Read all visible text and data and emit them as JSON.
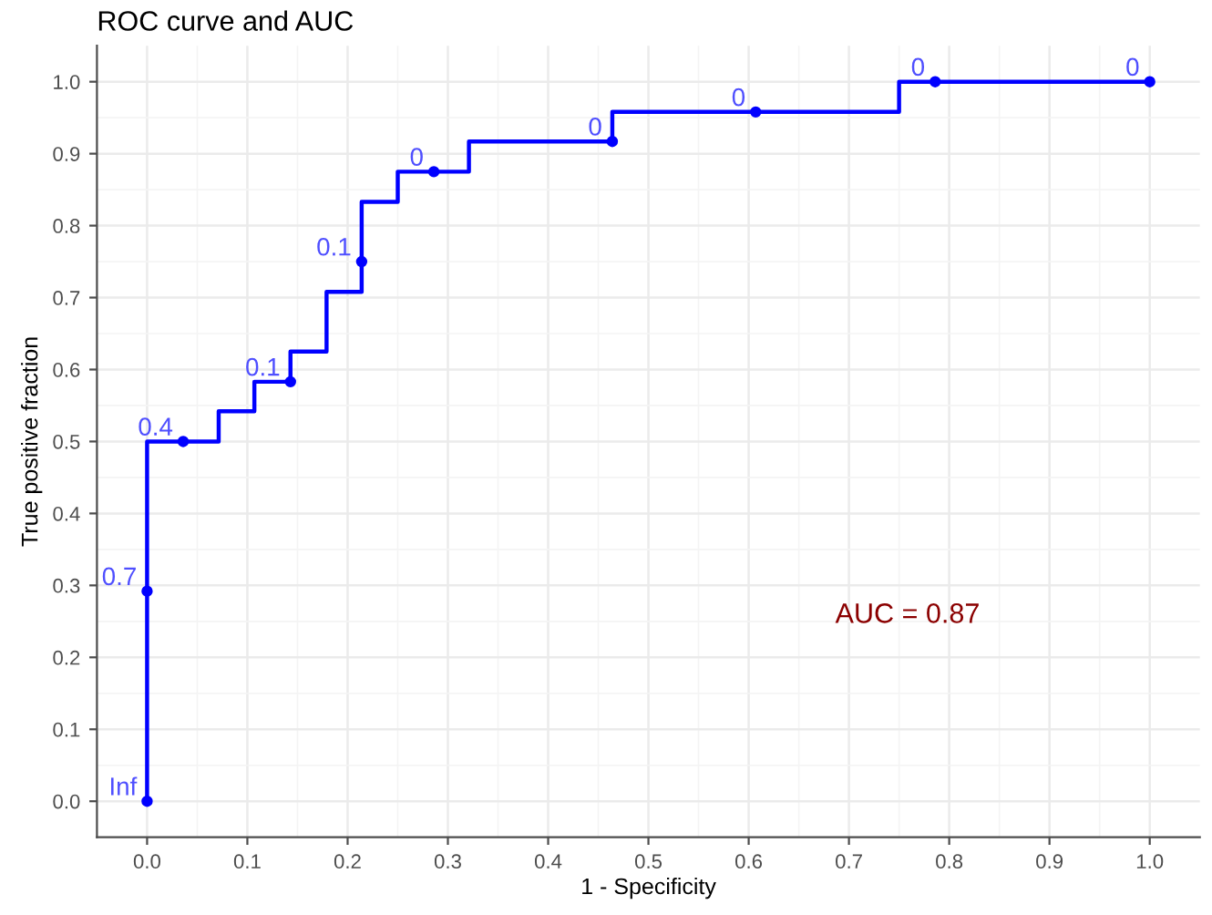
{
  "chart_data": {
    "type": "step",
    "title": "ROC curve and AUC",
    "xlabel": "1 - Specificity",
    "ylabel": "True positive fraction",
    "series": [
      {
        "color": "#0000ff",
        "x": [
          0.0,
          0.0,
          0.0714,
          0.107,
          0.143,
          0.179,
          0.214,
          0.25,
          0.321,
          0.464,
          0.75,
          1.0
        ],
        "values": [
          0.0,
          0.5,
          0.542,
          0.583,
          0.625,
          0.708,
          0.833,
          0.875,
          0.917,
          0.958,
          1.0,
          1.0
        ]
      },
      {
        "type": "scatter",
        "color": "#0000ff",
        "marker": "circle",
        "x": [
          0.0,
          0.0,
          0.036,
          0.143,
          0.214,
          0.286,
          0.464,
          0.607,
          0.786,
          1.0
        ],
        "values": [
          0.0,
          0.292,
          0.5,
          0.583,
          0.75,
          0.875,
          0.917,
          0.958,
          1.0,
          1.0
        ]
      }
    ],
    "annotations": [
      {
        "text": "Inf",
        "x": 0.0,
        "y": 0.0
      },
      {
        "text": "0.7",
        "x": 0.0,
        "y": 0.292
      },
      {
        "text": "0.4",
        "x": 0.036,
        "y": 0.5
      },
      {
        "text": "0.1",
        "x": 0.143,
        "y": 0.583
      },
      {
        "text": "0.1",
        "x": 0.214,
        "y": 0.75
      },
      {
        "text": "0",
        "x": 0.286,
        "y": 0.875
      },
      {
        "text": "0",
        "x": 0.464,
        "y": 0.917
      },
      {
        "text": "0",
        "x": 0.607,
        "y": 0.958
      },
      {
        "text": "0",
        "x": 0.786,
        "y": 1.0
      },
      {
        "text": "0",
        "x": 1.0,
        "y": 1.0
      },
      "AUC = 0.87"
    ],
    "xlim": [
      -0.05,
      1.05
    ],
    "ylim": [
      -0.05,
      1.05
    ],
    "xticks": [
      {
        "value": 0.0,
        "label": "0.0"
      },
      0.1,
      0.2,
      0.3,
      0.4,
      0.5,
      0.6,
      0.7,
      0.8,
      0.9,
      {
        "value": 1.0,
        "label": "1.0"
      }
    ],
    "yticks": [
      {
        "value": 0.0,
        "label": "0.0"
      },
      0.1,
      0.2,
      0.3,
      0.4,
      0.5,
      0.6,
      0.7,
      0.8,
      0.9,
      {
        "value": 1.0,
        "label": "1.0"
      }
    ],
    "grid": true,
    "legend": false
  }
}
